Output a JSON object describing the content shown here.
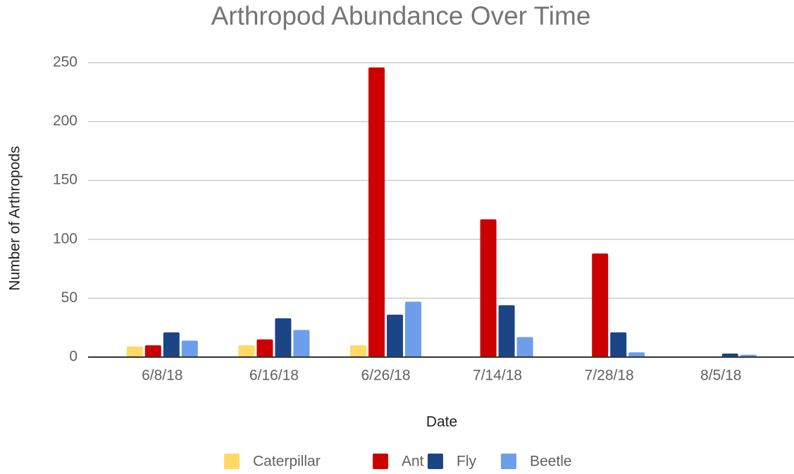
{
  "chart_data": {
    "type": "bar",
    "title": "Arthropod Abundance Over Time",
    "x_label": "Date",
    "y_label": "Number of Arthropods",
    "categories": [
      "6/8/18",
      "6/16/18",
      "6/26/18",
      "7/14/18",
      "7/28/18",
      "8/5/18"
    ],
    "series": [
      {
        "name": "Caterpillar",
        "color": "#ffd966",
        "values": [
          9,
          10,
          10,
          0,
          0,
          0
        ]
      },
      {
        "name": "Ant",
        "color": "#cc0000",
        "values": [
          10,
          15,
          246,
          117,
          88,
          0
        ]
      },
      {
        "name": "Fly",
        "color": "#1c4587",
        "values": [
          21,
          33,
          36,
          44,
          21,
          3
        ]
      },
      {
        "name": "Beetle",
        "color": "#6d9eeb",
        "values": [
          14,
          23,
          47,
          17,
          4,
          2
        ]
      }
    ],
    "ylim": [
      0,
      250
    ],
    "yticks": [
      0,
      50,
      100,
      150,
      200,
      250
    ],
    "grid": true,
    "legend": "bottom"
  }
}
